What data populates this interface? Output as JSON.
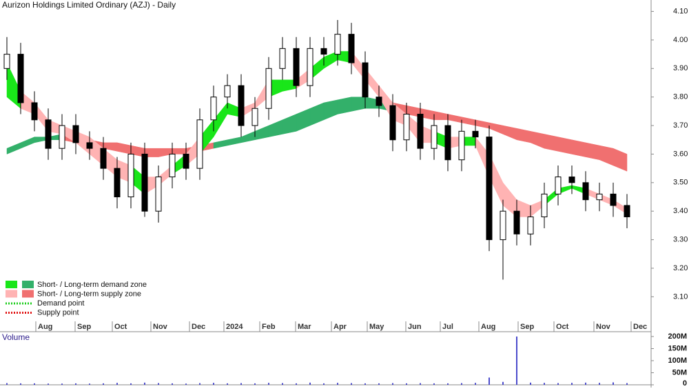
{
  "chart_data": {
    "type": "candlestick",
    "title": "Aurizon Holdings Limited Ordinary (AZJ) - Daily",
    "xlim": [
      -0.5,
      46.75
    ],
    "xticks": [
      {
        "value": 2.1,
        "label": "Aug"
      },
      {
        "value": 4.95,
        "label": "Sep"
      },
      {
        "value": 7.65,
        "label": "Oct"
      },
      {
        "value": 10.45,
        "label": "Nov"
      },
      {
        "value": 13.25,
        "label": "Dec"
      },
      {
        "value": 15.75,
        "label": "2024"
      },
      {
        "value": 18.35,
        "label": "Feb"
      },
      {
        "value": 20.95,
        "label": "Mar"
      },
      {
        "value": 23.55,
        "label": "Apr"
      },
      {
        "value": 26.15,
        "label": "May"
      },
      {
        "value": 28.95,
        "label": "Jun"
      },
      {
        "value": 31.45,
        "label": "Jul"
      },
      {
        "value": 34.25,
        "label": "Aug"
      },
      {
        "value": 37.1,
        "label": "Sep"
      },
      {
        "value": 39.7,
        "label": "Oct"
      },
      {
        "value": 42.6,
        "label": "Nov"
      },
      {
        "value": 45.3,
        "label": "Dec"
      }
    ],
    "ylim": [
      2.98,
      4.14
    ],
    "yticks": [
      {
        "value": 3.1,
        "label": "3.10"
      },
      {
        "value": 3.2,
        "label": "3.20"
      },
      {
        "value": 3.3,
        "label": "3.30"
      },
      {
        "value": 3.4,
        "label": "3.40"
      },
      {
        "value": 3.5,
        "label": "3.50"
      },
      {
        "value": 3.6,
        "label": "3.60"
      },
      {
        "value": 3.7,
        "label": "3.70"
      },
      {
        "value": 3.8,
        "label": "3.80"
      },
      {
        "value": 3.9,
        "label": "3.90"
      },
      {
        "value": 4.0,
        "label": "4.00"
      },
      {
        "value": 4.1,
        "label": "4.10"
      }
    ],
    "open": [
      3.9,
      3.95,
      3.78,
      3.72,
      3.62,
      3.7,
      3.64,
      3.62,
      3.55,
      3.45,
      3.6,
      3.4,
      3.52,
      3.6,
      3.55,
      3.72,
      3.8,
      3.84,
      3.7,
      3.76,
      3.9,
      3.97,
      3.84,
      3.97,
      3.95,
      4.02,
      3.92,
      3.8,
      3.77,
      3.65,
      3.74,
      3.62,
      3.7,
      3.58,
      3.68,
      3.66,
      3.3,
      3.4,
      3.32,
      3.38,
      3.46,
      3.52,
      3.5,
      3.44,
      3.46,
      3.42
    ],
    "high": [
      4.01,
      3.99,
      3.82,
      3.76,
      3.74,
      3.74,
      3.68,
      3.66,
      3.59,
      3.64,
      3.64,
      3.56,
      3.64,
      3.64,
      3.76,
      3.84,
      3.88,
      3.88,
      3.8,
      3.94,
      4.01,
      4.01,
      4.01,
      4.01,
      4.07,
      4.06,
      3.96,
      3.84,
      3.81,
      3.78,
      3.78,
      3.74,
      3.74,
      3.72,
      3.72,
      3.7,
      3.44,
      3.44,
      3.42,
      3.5,
      3.56,
      3.56,
      3.54,
      3.5,
      3.5,
      3.46
    ],
    "low": [
      3.86,
      3.74,
      3.68,
      3.58,
      3.58,
      3.6,
      3.58,
      3.51,
      3.41,
      3.41,
      3.38,
      3.36,
      3.48,
      3.51,
      3.51,
      3.68,
      3.76,
      3.66,
      3.66,
      3.72,
      3.86,
      3.8,
      3.8,
      3.91,
      3.91,
      3.88,
      3.76,
      3.73,
      3.61,
      3.61,
      3.58,
      3.58,
      3.54,
      3.54,
      3.62,
      3.26,
      3.16,
      3.28,
      3.28,
      3.34,
      3.42,
      3.46,
      3.4,
      3.4,
      3.38,
      3.34
    ],
    "close": [
      3.95,
      3.78,
      3.72,
      3.62,
      3.7,
      3.64,
      3.62,
      3.55,
      3.45,
      3.6,
      3.4,
      3.52,
      3.6,
      3.55,
      3.72,
      3.8,
      3.84,
      3.7,
      3.76,
      3.9,
      3.97,
      3.84,
      3.97,
      3.95,
      4.02,
      3.92,
      3.8,
      3.77,
      3.65,
      3.74,
      3.62,
      3.7,
      3.58,
      3.68,
      3.66,
      3.3,
      3.4,
      3.32,
      3.38,
      3.46,
      3.52,
      3.5,
      3.44,
      3.46,
      3.42,
      3.38
    ],
    "short_zone": {
      "upper": [
        3.92,
        3.82,
        3.78,
        3.72,
        3.7,
        3.68,
        3.66,
        3.62,
        3.58,
        3.56,
        3.52,
        3.52,
        3.56,
        3.6,
        3.66,
        3.72,
        3.78,
        3.76,
        3.78,
        3.86,
        3.86,
        3.86,
        3.9,
        3.94,
        3.96,
        3.96,
        3.9,
        3.84,
        3.78,
        3.74,
        3.7,
        3.68,
        3.66,
        3.66,
        3.66,
        3.6,
        3.5,
        3.44,
        3.42,
        3.44,
        3.48,
        3.49,
        3.48,
        3.46,
        3.44,
        3.41
      ],
      "lower": [
        3.8,
        3.76,
        3.74,
        3.68,
        3.67,
        3.64,
        3.6,
        3.56,
        3.52,
        3.5,
        3.46,
        3.49,
        3.53,
        3.56,
        3.6,
        3.66,
        3.74,
        3.73,
        3.76,
        3.8,
        3.82,
        3.83,
        3.86,
        3.9,
        3.93,
        3.92,
        3.86,
        3.8,
        3.72,
        3.7,
        3.64,
        3.64,
        3.62,
        3.63,
        3.63,
        3.52,
        3.42,
        3.38,
        3.38,
        3.42,
        3.46,
        3.48,
        3.46,
        3.44,
        3.42,
        3.39
      ]
    },
    "long_zone": {
      "upper": [
        3.62,
        3.64,
        3.66,
        3.66,
        3.67,
        3.66,
        3.65,
        3.64,
        3.64,
        3.63,
        3.62,
        3.62,
        3.62,
        3.62,
        3.63,
        3.64,
        3.65,
        3.66,
        3.68,
        3.7,
        3.72,
        3.74,
        3.76,
        3.78,
        3.79,
        3.8,
        3.8,
        3.79,
        3.78,
        3.77,
        3.76,
        3.75,
        3.74,
        3.73,
        3.72,
        3.71,
        3.7,
        3.69,
        3.68,
        3.67,
        3.66,
        3.65,
        3.64,
        3.63,
        3.62,
        3.6
      ],
      "lower": [
        3.6,
        3.62,
        3.64,
        3.65,
        3.65,
        3.64,
        3.63,
        3.62,
        3.61,
        3.6,
        3.59,
        3.59,
        3.6,
        3.6,
        3.61,
        3.62,
        3.63,
        3.64,
        3.65,
        3.66,
        3.67,
        3.68,
        3.7,
        3.72,
        3.74,
        3.75,
        3.76,
        3.76,
        3.75,
        3.74,
        3.73,
        3.72,
        3.72,
        3.71,
        3.7,
        3.69,
        3.67,
        3.65,
        3.64,
        3.62,
        3.61,
        3.6,
        3.59,
        3.58,
        3.56,
        3.54
      ]
    },
    "legend": [
      {
        "label": "Short- / Long-term demand zone",
        "colors": [
          "#19e619",
          "#33b06a"
        ]
      },
      {
        "label": "Short- / Long-term supply zone",
        "colors": [
          "#ffb3b3",
          "#f07070"
        ]
      },
      {
        "label": "Demand point",
        "colors": [
          "#19cc19"
        ]
      },
      {
        "label": "Supply point",
        "colors": [
          "#e01010"
        ]
      }
    ],
    "volume": {
      "label": "Volume",
      "color": "#4a4acc",
      "ylim": [
        0,
        200000000
      ],
      "yticks": [
        0,
        {
          "value": 50000000,
          "label": "50M"
        },
        {
          "value": 100000000,
          "label": "100M"
        },
        {
          "value": 150000000,
          "label": "150M"
        },
        {
          "value": 200000000,
          "label": "200M"
        }
      ],
      "values": [
        7000000,
        6000000,
        6000000,
        5000000,
        5000000,
        6000000,
        5000000,
        6000000,
        8000000,
        6000000,
        9000000,
        7000000,
        6000000,
        5000000,
        7000000,
        8000000,
        6000000,
        7000000,
        6000000,
        8000000,
        7000000,
        6000000,
        9000000,
        6000000,
        8000000,
        7000000,
        6000000,
        6000000,
        7000000,
        6000000,
        7000000,
        6000000,
        6000000,
        7000000,
        8000000,
        30000000,
        12000000,
        200000000,
        9000000,
        8000000,
        7000000,
        8000000,
        9000000,
        8000000,
        10000000,
        7000000
      ]
    }
  }
}
